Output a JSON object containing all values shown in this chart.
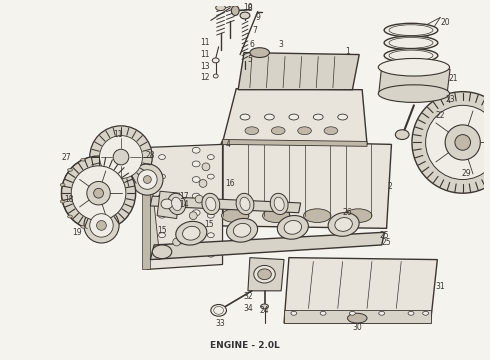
{
  "title": "ENGINE - 2.0L",
  "title_fontsize": 6.5,
  "title_color": "#333333",
  "background_color": "#f5f3ee",
  "fig_width": 4.9,
  "fig_height": 3.6,
  "dpi": 100,
  "line_color": "#3a3530",
  "fill_light": "#e8e4dc",
  "fill_mid": "#d8d3c8",
  "fill_dark": "#c0b8a8",
  "fill_white": "#f0ede6"
}
